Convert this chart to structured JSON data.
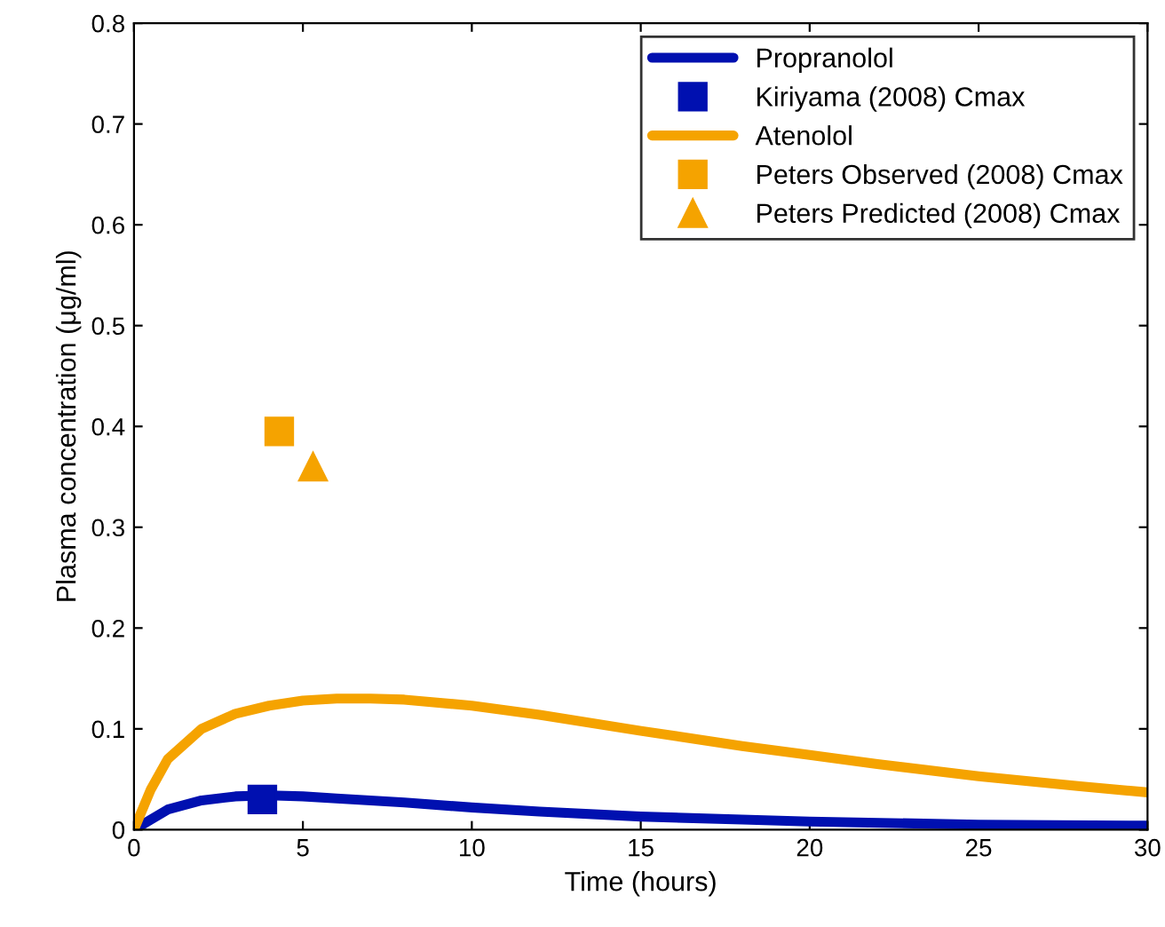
{
  "chart_data": {
    "type": "line",
    "xlabel": "Time (hours)",
    "ylabel": "Plasma concentration (μg/ml)",
    "xlim": [
      0,
      30
    ],
    "ylim": [
      0,
      0.8
    ],
    "xticks": [
      0,
      5,
      10,
      15,
      20,
      25,
      30
    ],
    "yticks": [
      0,
      0.1,
      0.2,
      0.3,
      0.4,
      0.5,
      0.6,
      0.7,
      0.8
    ],
    "grid": false,
    "legend": "top right",
    "series": [
      {
        "name": "Propranolol",
        "color": "#0010b0",
        "marker": "none",
        "x": [
          0,
          0.5,
          1,
          2,
          3,
          4,
          5,
          6,
          8,
          10,
          12,
          15,
          18,
          20,
          25,
          30
        ],
        "values": [
          0,
          0.01,
          0.02,
          0.029,
          0.033,
          0.034,
          0.033,
          0.031,
          0.027,
          0.022,
          0.018,
          0.013,
          0.01,
          0.008,
          0.005,
          0.004
        ]
      },
      {
        "name": "Kiriyama (2008) Cmax",
        "type": "scatter",
        "color": "#0010b0",
        "marker": "square",
        "x": [
          3.8
        ],
        "values": [
          0.03
        ]
      },
      {
        "name": "Atenolol",
        "color": "#f5a300",
        "marker": "none",
        "x": [
          0,
          0.5,
          1,
          2,
          3,
          4,
          5,
          6,
          7,
          8,
          10,
          12,
          15,
          18,
          20,
          22,
          25,
          28,
          30
        ],
        "values": [
          0,
          0.04,
          0.07,
          0.1,
          0.115,
          0.123,
          0.128,
          0.13,
          0.13,
          0.129,
          0.123,
          0.114,
          0.098,
          0.083,
          0.074,
          0.065,
          0.053,
          0.043,
          0.037
        ]
      },
      {
        "name": "Peters Observed (2008) Cmax",
        "type": "scatter",
        "color": "#f5a300",
        "marker": "square",
        "x": [
          4.3
        ],
        "values": [
          0.395
        ]
      },
      {
        "name": "Peters Predicted (2008) Cmax",
        "type": "scatter",
        "color": "#f5a300",
        "marker": "triangle",
        "x": [
          5.3
        ],
        "values": [
          0.36
        ]
      }
    ]
  }
}
